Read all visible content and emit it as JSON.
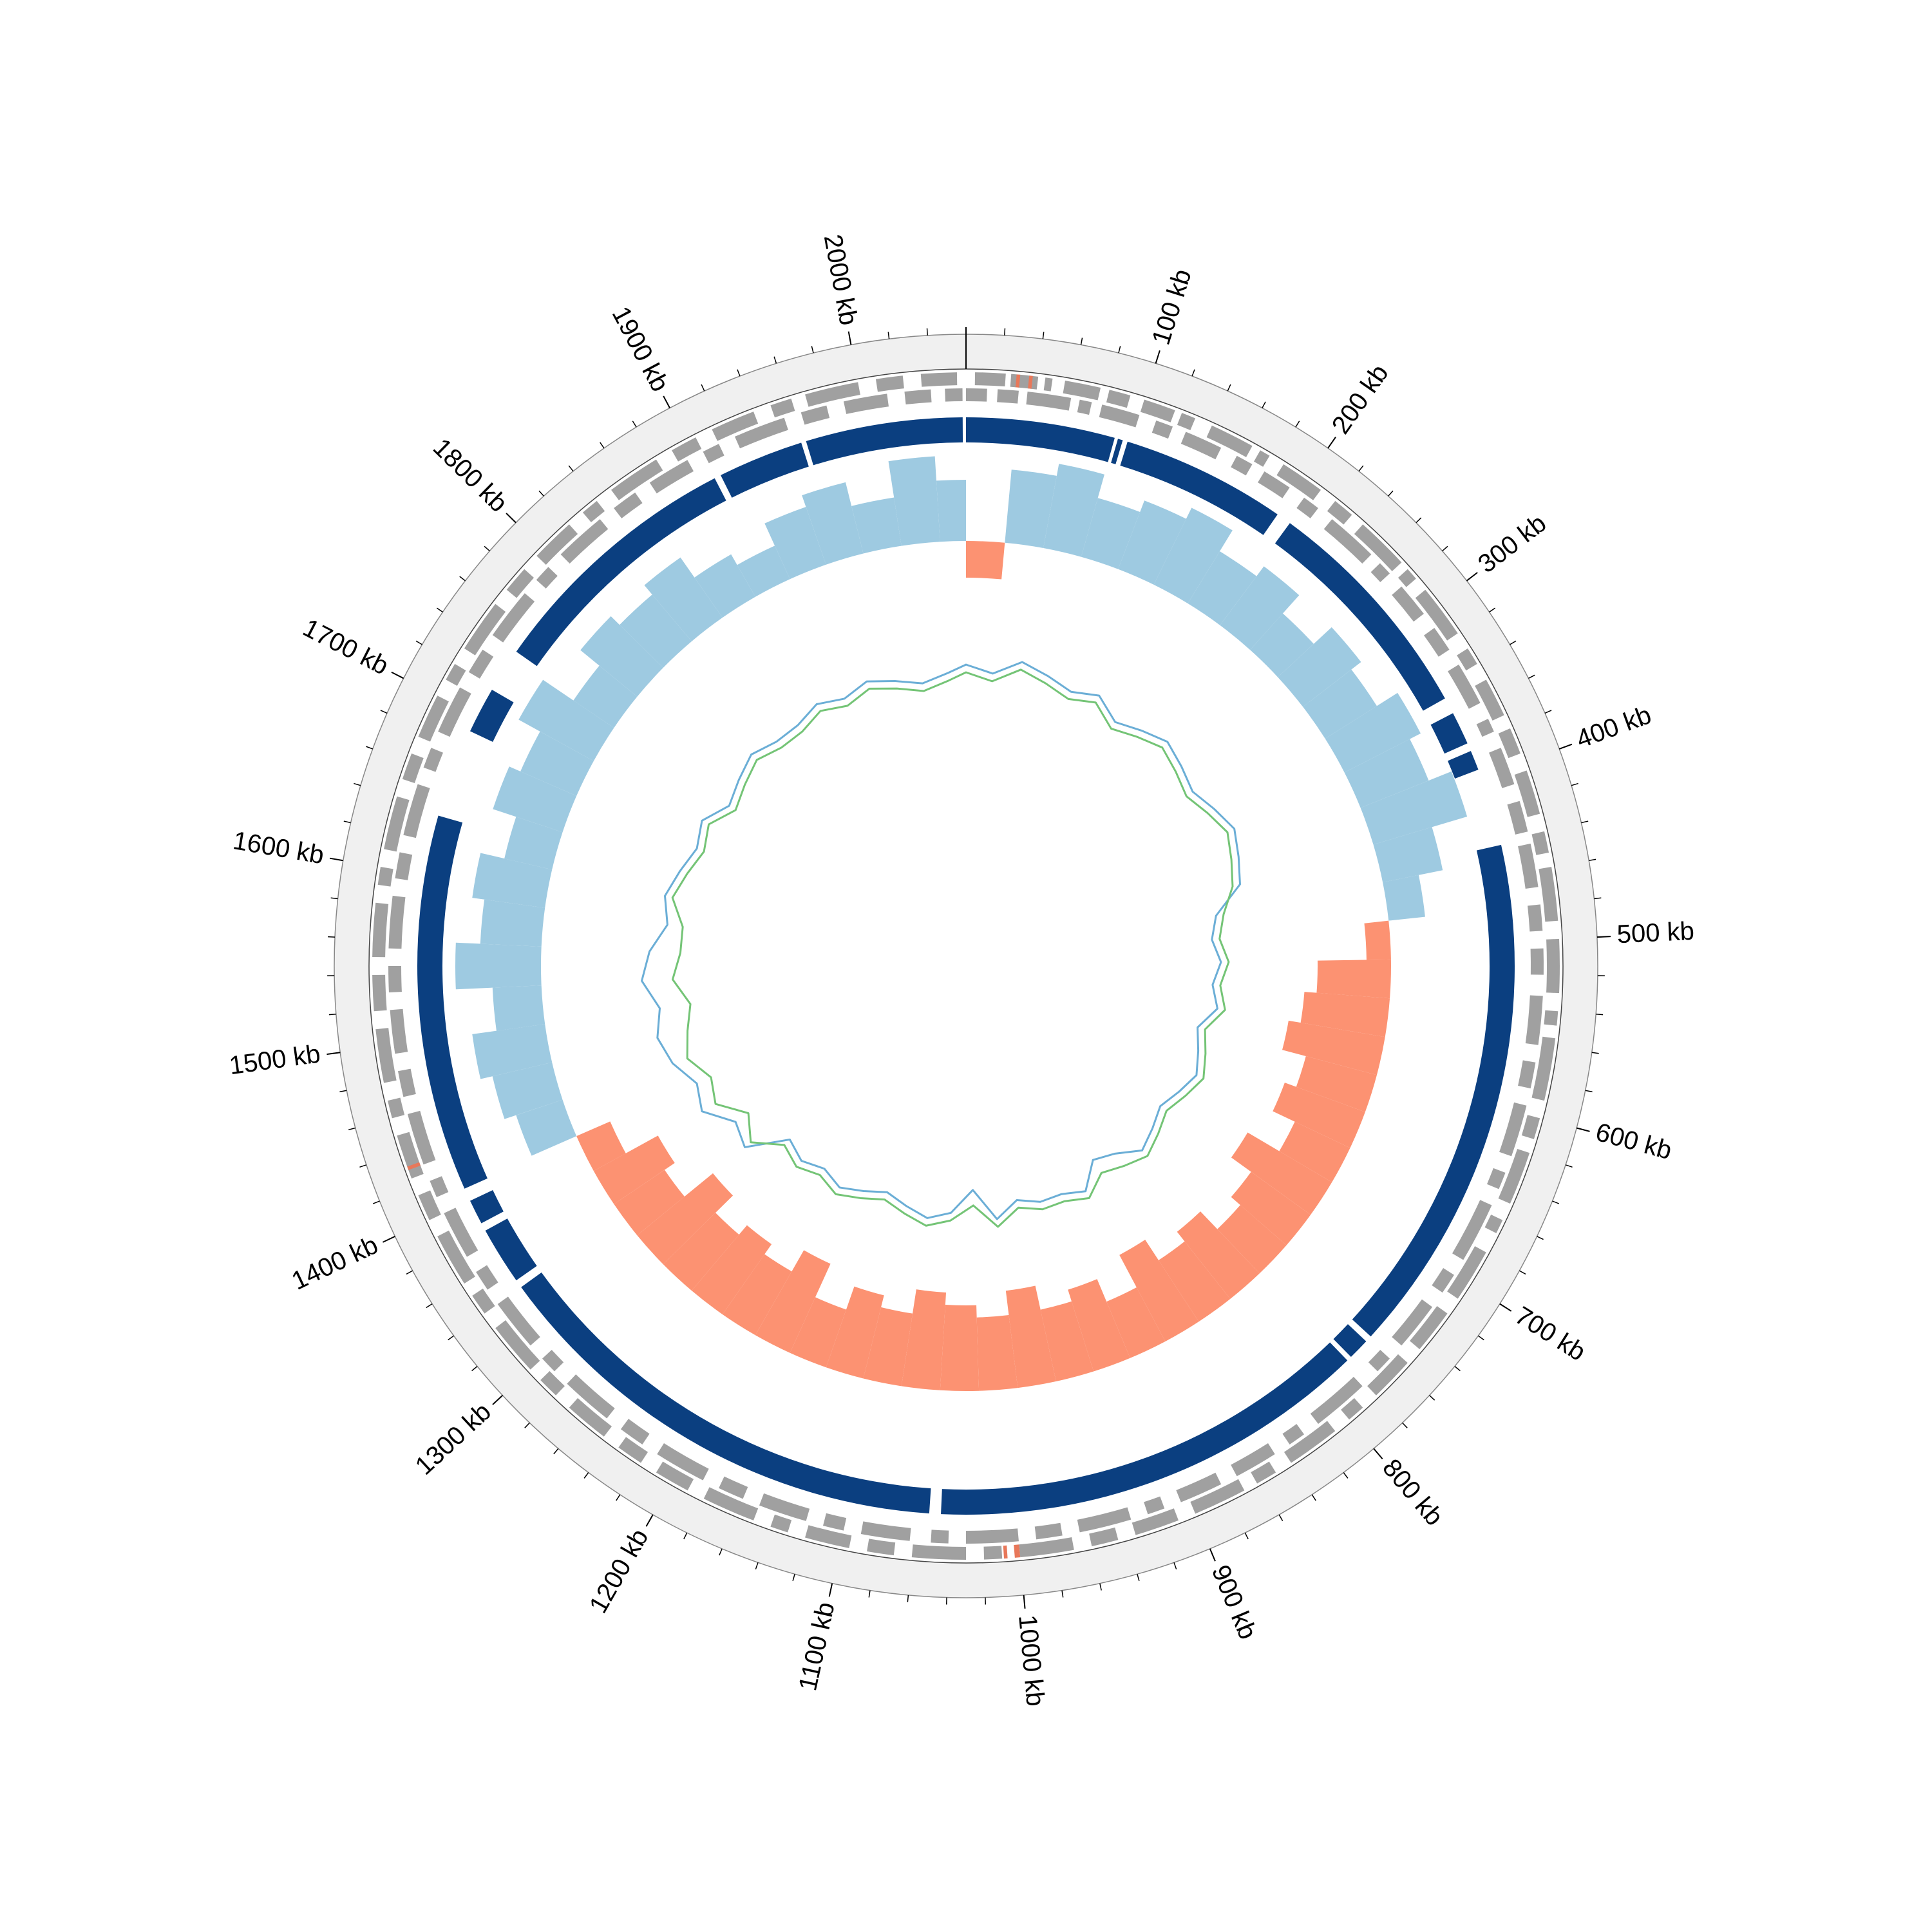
{
  "chart_data": {
    "type": "circular",
    "xlim": [
      0,
      2060
    ],
    "xticks": [
      {
        "value": 100,
        "label": "100 kb"
      },
      {
        "value": 200,
        "label": "200 kb"
      },
      {
        "value": 300,
        "label": "300 kb"
      },
      {
        "value": 400,
        "label": "400 kb"
      },
      {
        "value": 500,
        "label": "500 kb"
      },
      {
        "value": 600,
        "label": "600 kb"
      },
      {
        "value": 700,
        "label": "700 kb"
      },
      {
        "value": 800,
        "label": "800 kb"
      },
      {
        "value": 900,
        "label": "900 kb"
      },
      {
        "value": 1000,
        "label": "1000 kb"
      },
      {
        "value": 1100,
        "label": "1100 kb"
      },
      {
        "value": 1200,
        "label": "1200 kb"
      },
      {
        "value": 1300,
        "label": "1300 kb"
      },
      {
        "value": 1400,
        "label": "1400 kb"
      },
      {
        "value": 1500,
        "label": "1500 kb"
      },
      {
        "value": 1600,
        "label": "1600 kb"
      },
      {
        "value": 1700,
        "label": "1700 kb"
      },
      {
        "value": 1800,
        "label": "1800 kb"
      },
      {
        "value": 1900,
        "label": "1900 kb"
      },
      {
        "value": 2000,
        "label": "2000 kb"
      }
    ],
    "minor_xtick_step": 20,
    "x": [
      0,
      30,
      60,
      90,
      120,
      150,
      180,
      210,
      240,
      270,
      300,
      330,
      360,
      390,
      420,
      450,
      480,
      510,
      540,
      570,
      600,
      630,
      660,
      690,
      720,
      750,
      780,
      810,
      840,
      870,
      900,
      930,
      960,
      990,
      1020,
      1050,
      1080,
      1110,
      1140,
      1170,
      1200,
      1230,
      1260,
      1290,
      1320,
      1350,
      1380,
      1410,
      1440,
      1470,
      1500,
      1530,
      1560,
      1590,
      1620,
      1650,
      1680,
      1710,
      1740,
      1770,
      1800,
      1830,
      1860,
      1890,
      1920,
      1950,
      1980,
      2010,
      2040
    ],
    "features": {
      "forward": {
        "color": "#a0a0a0",
        "intervals": [
          [
            5,
            22
          ],
          [
            25,
            40
          ],
          [
            44,
            48
          ],
          [
            55,
            75
          ],
          [
            80,
            92
          ],
          [
            100,
            118
          ],
          [
            122,
            130
          ],
          [
            140,
            165
          ],
          [
            170,
            176
          ],
          [
            185,
            210
          ],
          [
            220,
            232
          ],
          [
            240,
            270
          ],
          [
            275,
            282
          ],
          [
            290,
            320
          ],
          [
            330,
            340
          ],
          [
            350,
            372
          ],
          [
            380,
            395
          ],
          [
            405,
            430
          ],
          [
            440,
            452
          ],
          [
            460,
            490
          ],
          [
            500,
            530
          ],
          [
            540,
            548
          ],
          [
            555,
            590
          ],
          [
            600,
            612
          ],
          [
            620,
            650
          ],
          [
            660,
            668
          ],
          [
            680,
            710
          ],
          [
            720,
            745
          ],
          [
            755,
            780
          ],
          [
            790,
            800
          ],
          [
            810,
            840
          ],
          [
            850,
            862
          ],
          [
            870,
            900
          ],
          [
            910,
            935
          ],
          [
            945,
            960
          ],
          [
            970,
            1000
          ],
          [
            1010,
            1020
          ],
          [
            1030,
            1060
          ],
          [
            1070,
            1085
          ],
          [
            1095,
            1120
          ],
          [
            1130,
            1140
          ],
          [
            1150,
            1180
          ],
          [
            1190,
            1210
          ],
          [
            1220,
            1235
          ],
          [
            1245,
            1270
          ],
          [
            1280,
            1292
          ],
          [
            1300,
            1330
          ],
          [
            1340,
            1352
          ],
          [
            1360,
            1390
          ],
          [
            1400,
            1415
          ],
          [
            1425,
            1450
          ],
          [
            1460,
            1470
          ],
          [
            1480,
            1510
          ],
          [
            1520,
            1540
          ],
          [
            1550,
            1580
          ],
          [
            1590,
            1600
          ],
          [
            1610,
            1640
          ],
          [
            1650,
            1665
          ],
          [
            1675,
            1700
          ],
          [
            1710,
            1720
          ],
          [
            1730,
            1760
          ],
          [
            1770,
            1785
          ],
          [
            1795,
            1820
          ],
          [
            1830,
            1840
          ],
          [
            1850,
            1880
          ],
          [
            1890,
            1905
          ],
          [
            1915,
            1940
          ],
          [
            1950,
            1962
          ],
          [
            1970,
            2000
          ],
          [
            2010,
            2025
          ],
          [
            2035,
            2055
          ]
        ]
      },
      "reverse": {
        "color": "#a0a0a0",
        "intervals": [
          [
            0,
            12
          ],
          [
            18,
            30
          ],
          [
            35,
            60
          ],
          [
            65,
            72
          ],
          [
            78,
            100
          ],
          [
            110,
            120
          ],
          [
            128,
            150
          ],
          [
            160,
            170
          ],
          [
            178,
            195
          ],
          [
            205,
            215
          ],
          [
            225,
            255
          ],
          [
            262,
            270
          ],
          [
            280,
            300
          ],
          [
            310,
            325
          ],
          [
            335,
            360
          ],
          [
            370,
            378
          ],
          [
            388,
            410
          ],
          [
            420,
            438
          ],
          [
            445,
            470
          ],
          [
            480,
            495
          ],
          [
            505,
            520
          ],
          [
            532,
            560
          ],
          [
            570,
            585
          ],
          [
            595,
            625
          ],
          [
            635,
            645
          ],
          [
            655,
            690
          ],
          [
            700,
            712
          ],
          [
            722,
            750
          ],
          [
            760,
            770
          ],
          [
            782,
            815
          ],
          [
            825,
            835
          ],
          [
            845,
            870
          ],
          [
            880,
            905
          ],
          [
            915,
            925
          ],
          [
            935,
            965
          ],
          [
            975,
            990
          ],
          [
            1000,
            1030
          ],
          [
            1040,
            1050
          ],
          [
            1062,
            1090
          ],
          [
            1100,
            1112
          ],
          [
            1122,
            1150
          ],
          [
            1160,
            1175
          ],
          [
            1185,
            1215
          ],
          [
            1225,
            1240
          ],
          [
            1250,
            1280
          ],
          [
            1290,
            1300
          ],
          [
            1310,
            1340
          ],
          [
            1350,
            1362
          ],
          [
            1372,
            1400
          ],
          [
            1410,
            1420
          ],
          [
            1430,
            1460
          ],
          [
            1470,
            1485
          ],
          [
            1495,
            1520
          ],
          [
            1530,
            1545
          ],
          [
            1555,
            1585
          ],
          [
            1595,
            1610
          ],
          [
            1620,
            1650
          ],
          [
            1660,
            1672
          ],
          [
            1682,
            1710
          ],
          [
            1720,
            1735
          ],
          [
            1745,
            1775
          ],
          [
            1785,
            1795
          ],
          [
            1805,
            1835
          ],
          [
            1845,
            1860
          ],
          [
            1870,
            1895
          ],
          [
            1905,
            1915
          ],
          [
            1925,
            1955
          ],
          [
            1965,
            1980
          ],
          [
            1990,
            2015
          ],
          [
            2025,
            2040
          ],
          [
            2048,
            2058
          ]
        ]
      },
      "rna": {
        "color": "#e8785a",
        "intervals": [
          [
            28,
            30
          ],
          [
            35,
            37
          ],
          [
            1000,
            1003
          ],
          [
            1007,
            1009
          ],
          [
            1430,
            1432
          ]
        ]
      },
      "blocks": {
        "color": "#0b3f80",
        "intervals": [
          [
            0,
            90
          ],
          [
            92,
            95
          ],
          [
            98,
            198
          ],
          [
            207,
            348
          ],
          [
            358,
            378
          ],
          [
            383,
            395
          ],
          [
            442,
            758
          ],
          [
            762,
            775
          ],
          [
            778,
            1045
          ],
          [
            1052,
            1340
          ],
          [
            1345,
            1380
          ],
          [
            1385,
            1400
          ],
          [
            1408,
            1636
          ],
          [
            1690,
            1718
          ],
          [
            1745,
            1904
          ],
          [
            1908,
            1960
          ],
          [
            1963,
            2058
          ]
        ]
      }
    },
    "gc_content": {
      "ylim": [
        -10,
        10
      ],
      "positive_color": "#9ecae1",
      "negative_color": "#fc9272",
      "values": [
        -3,
        6,
        7,
        5,
        6,
        7,
        5,
        6,
        4,
        6,
        5,
        7,
        6,
        8,
        5,
        3,
        -2,
        -6,
        -7,
        -8,
        -6,
        -7,
        -5,
        -8,
        -6,
        -5,
        -7,
        -6,
        -8,
        -5,
        -7,
        -6,
        -8,
        -6,
        -7,
        -8,
        -6,
        -7,
        -5,
        -8,
        -6,
        -7,
        -6,
        -8,
        -5,
        -6,
        -3,
        4,
        5,
        6,
        4,
        7,
        5,
        6,
        4,
        6,
        5,
        7,
        4,
        6,
        5,
        6,
        4,
        3,
        5,
        6,
        4,
        7,
        5
      ]
    },
    "gc_skew": {
      "ylim": [
        -10,
        10
      ],
      "series": [
        {
          "color": "#6baed6",
          "values": [
            4,
            3,
            5,
            4,
            3,
            4,
            2,
            3,
            4,
            3,
            2,
            3,
            4,
            3,
            2,
            -2,
            -3,
            -2,
            -3,
            -2,
            -4,
            -3,
            -2,
            -3,
            -4,
            -3,
            -2,
            -4,
            -5,
            -2,
            -3,
            -3,
            -4,
            -2,
            -6,
            -3,
            -2,
            -3,
            -4,
            -3,
            -2,
            -3,
            -2,
            -3,
            2,
            1,
            4,
            3,
            5,
            6,
            5,
            7,
            6,
            4,
            5,
            4,
            3,
            4,
            2,
            3,
            4,
            3,
            3,
            4,
            3,
            4,
            3,
            2,
            3
          ]
        },
        {
          "color": "#74c476",
          "values": [
            3,
            2,
            4,
            3,
            2,
            3,
            1,
            2,
            3,
            2,
            1,
            2,
            3,
            2,
            1,
            -1,
            -2,
            -1,
            -2,
            -1,
            -3,
            -2,
            -1,
            -2,
            -3,
            -2,
            -1,
            -2,
            -3,
            -1,
            -2,
            -2,
            -3,
            -1,
            -4,
            -2,
            -1,
            -2,
            -3,
            -2,
            -1,
            -2,
            -1,
            -2,
            1,
            -1,
            2,
            1,
            3,
            2,
            1,
            3,
            2,
            2,
            4,
            3,
            2,
            3,
            1,
            2,
            3,
            2,
            2,
            3,
            2,
            3,
            2,
            1,
            2
          ]
        }
      ]
    }
  }
}
